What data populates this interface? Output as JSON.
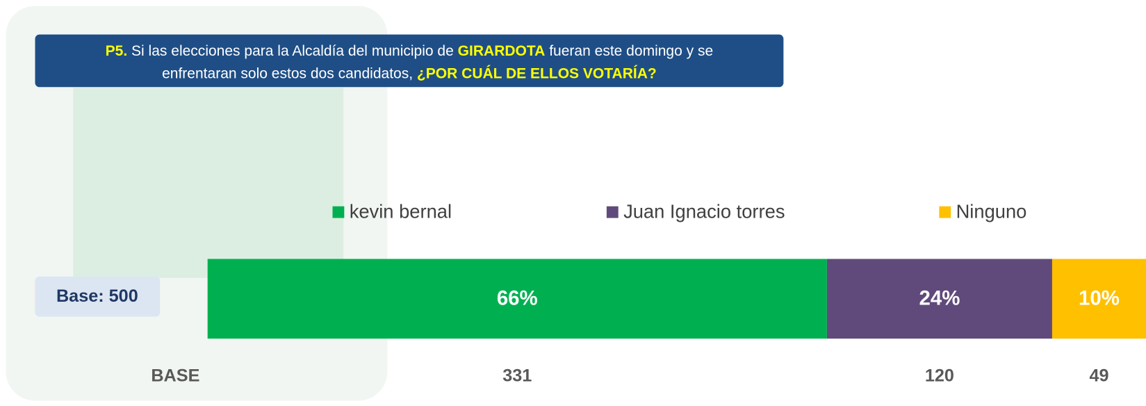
{
  "question": {
    "lines": [
      [
        {
          "text": "P5.",
          "highlight": true
        },
        {
          "text": " Si las elecciones para la Alcaldía del municipio de ",
          "highlight": false
        },
        {
          "text": "GIRARDOTA",
          "highlight": true
        },
        {
          "text": " fueran este domingo y se",
          "highlight": false
        }
      ],
      [
        {
          "text": "enfrentaran solo estos dos candidatos, ",
          "highlight": false
        },
        {
          "text": "¿POR CUÁL DE ELLOS VOTARÍA?",
          "highlight": true
        }
      ]
    ]
  },
  "base_note": "Base: 500",
  "chart_data": {
    "type": "stacked_bar",
    "orientation": "horizontal",
    "xlim": [
      0,
      100
    ],
    "series": [
      {
        "name": "kevin bernal",
        "color": "#00b050",
        "values": [
          66
        ],
        "value_labels": [
          "66%"
        ],
        "count": 331
      },
      {
        "name": "Juan Ignacio torres",
        "color": "#604a7b",
        "values": [
          24
        ],
        "value_labels": [
          "24%"
        ],
        "count": 120
      },
      {
        "name": "Ninguno",
        "color": "#ffc000",
        "values": [
          10
        ],
        "value_labels": [
          "10%"
        ],
        "count": 49
      }
    ],
    "count_label": "BASE"
  }
}
